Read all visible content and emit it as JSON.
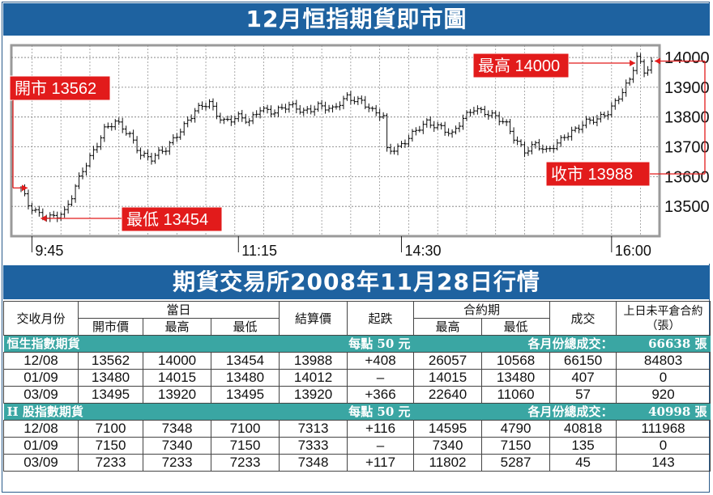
{
  "title": "12月恒指期貨即市圖",
  "subtitle": "期貨交易所2008年11月28日行情",
  "colors": {
    "header_blue": "#1e62a0",
    "section_teal": "#3aa6a3",
    "callout_red": "#e21b1b"
  },
  "chart_data": {
    "type": "candlestick",
    "title": "12月恒指期貨即市圖",
    "ylim": [
      13400,
      14030
    ],
    "y_ticks": [
      14000,
      13900,
      13800,
      13700,
      13600,
      13500
    ],
    "x_ticks": [
      "9:45",
      "11:15",
      "14:30",
      "16:00"
    ],
    "x_tick_positions": [
      3,
      60,
      105,
      163
    ],
    "x_count": 175,
    "grid": true,
    "callouts": {
      "open": {
        "label": "開市 13562",
        "value": 13562
      },
      "high": {
        "label": "最高 14000",
        "value": 14000
      },
      "low": {
        "label": "最低 13454",
        "value": 13454
      },
      "close": {
        "label": "收市 13988",
        "value": 13988
      }
    },
    "anchor_series": [
      [
        0,
        13562
      ],
      [
        2,
        13500
      ],
      [
        5,
        13470
      ],
      [
        8,
        13468
      ],
      [
        12,
        13480
      ],
      [
        14,
        13530
      ],
      [
        17,
        13620
      ],
      [
        20,
        13690
      ],
      [
        23,
        13760
      ],
      [
        26,
        13780
      ],
      [
        30,
        13740
      ],
      [
        33,
        13680
      ],
      [
        36,
        13660
      ],
      [
        40,
        13690
      ],
      [
        44,
        13760
      ],
      [
        48,
        13820
      ],
      [
        52,
        13845
      ],
      [
        54,
        13810
      ],
      [
        56,
        13790
      ],
      [
        60,
        13800
      ],
      [
        63,
        13780
      ],
      [
        66,
        13830
      ],
      [
        70,
        13820
      ],
      [
        74,
        13835
      ],
      [
        78,
        13820
      ],
      [
        82,
        13840
      ],
      [
        86,
        13820
      ],
      [
        90,
        13870
      ],
      [
        94,
        13855
      ],
      [
        97,
        13815
      ],
      [
        100,
        13800
      ],
      [
        101,
        13690
      ],
      [
        104,
        13700
      ],
      [
        108,
        13740
      ],
      [
        112,
        13780
      ],
      [
        116,
        13770
      ],
      [
        119,
        13740
      ],
      [
        122,
        13790
      ],
      [
        125,
        13830
      ],
      [
        128,
        13820
      ],
      [
        131,
        13800
      ],
      [
        134,
        13770
      ],
      [
        136,
        13730
      ],
      [
        139,
        13690
      ],
      [
        142,
        13710
      ],
      [
        145,
        13680
      ],
      [
        148,
        13710
      ],
      [
        150,
        13740
      ],
      [
        153,
        13760
      ],
      [
        156,
        13780
      ],
      [
        159,
        13790
      ],
      [
        162,
        13820
      ],
      [
        165,
        13870
      ],
      [
        168,
        13920
      ],
      [
        170,
        14000
      ],
      [
        172,
        13950
      ],
      [
        174,
        13988
      ]
    ]
  },
  "table": {
    "headers": {
      "contract_month": "交收月份",
      "day": "當日",
      "open": "開市價",
      "high": "最高",
      "low": "最低",
      "settlement": "結算價",
      "change": "起跌",
      "contract_period": "合約期",
      "cp_high": "最高",
      "cp_low": "最低",
      "volume": "成交",
      "open_interest": "上日未平倉合約（張）"
    },
    "sections": [
      {
        "name": "恒生指數期貨",
        "per_point": "每點 50 元",
        "total_label": "各月份總成交：",
        "total_value": "66638 張",
        "rows": [
          [
            "12/08",
            "13562",
            "14000",
            "13454",
            "13988",
            "+408",
            "26057",
            "10568",
            "66150",
            "84803"
          ],
          [
            "01/09",
            "13480",
            "14015",
            "13480",
            "14012",
            "–",
            "14015",
            "13480",
            "407",
            "0"
          ],
          [
            "03/09",
            "13495",
            "13920",
            "13495",
            "13920",
            "+366",
            "22640",
            "11060",
            "57",
            "920"
          ]
        ]
      },
      {
        "name": "H 股指數期貨",
        "per_point": "每點 50 元",
        "total_label": "各月份總成交：",
        "total_value": "40998 張",
        "rows": [
          [
            "12/08",
            "7100",
            "7348",
            "7100",
            "7313",
            "+116",
            "14595",
            "4790",
            "40818",
            "111968"
          ],
          [
            "01/09",
            "7150",
            "7340",
            "7150",
            "7333",
            "–",
            "7340",
            "7150",
            "135",
            "0"
          ],
          [
            "03/09",
            "7233",
            "7233",
            "7233",
            "7348",
            "+117",
            "11802",
            "5287",
            "45",
            "143"
          ]
        ]
      }
    ]
  }
}
